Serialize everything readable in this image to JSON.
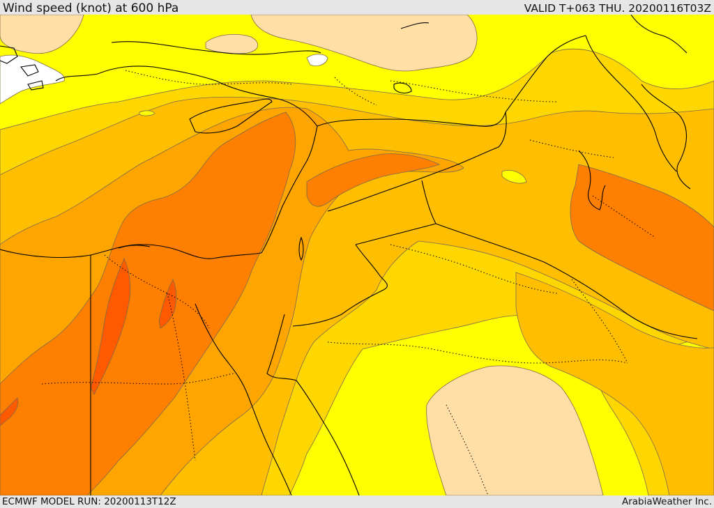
{
  "header": {
    "title": "Wind speed (knot) at 600 hPa",
    "valid_time": "VALID T+063 THU. 20200116T03Z"
  },
  "footer": {
    "model_run": "ECMWF MODEL RUN: 20200113T12Z",
    "credit": "ArabiaWeather Inc."
  },
  "palette": {
    "band_1": "#ffffff",
    "band_2": "#ffdfa6",
    "band_3": "#ffff00",
    "band_4": "#ffd700",
    "band_5": "#ffbe00",
    "band_6": "#ffa500",
    "band_7": "#ff7f00",
    "band_8": "#ff5a00",
    "contour_line": "#7a6a4a",
    "coastline": "#000000"
  }
}
